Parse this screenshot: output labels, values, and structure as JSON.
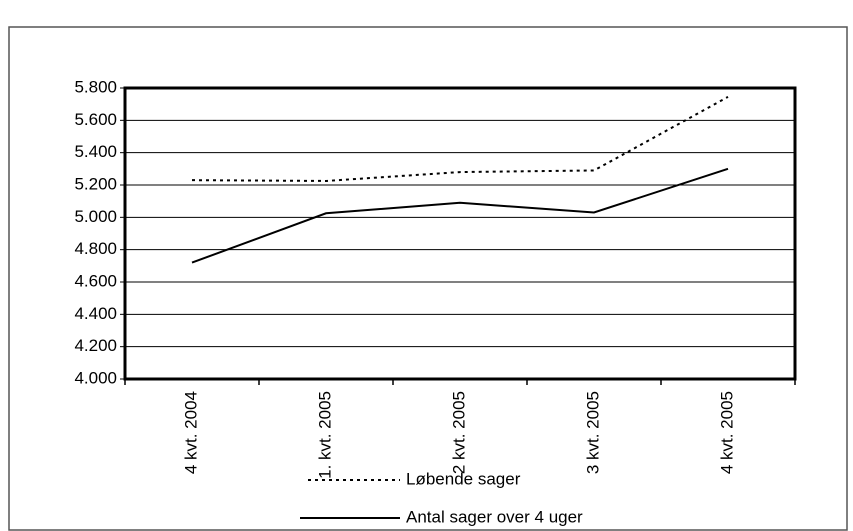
{
  "chart_data": {
    "type": "line",
    "categories": [
      "4 kvt. 2004",
      "1. kvt. 2005",
      "2 kvt. 2005",
      "3 kvt. 2005",
      "4 kvt. 2005"
    ],
    "series": [
      {
        "name": "Løbende sager",
        "color": "#000000",
        "dash": true,
        "values": [
          5230,
          5225,
          5280,
          5290,
          5745
        ]
      },
      {
        "name": "Antal sager over 4 uger",
        "color": "#000000",
        "dash": false,
        "values": [
          4720,
          5025,
          5090,
          5030,
          5300
        ]
      }
    ],
    "ylim": [
      4000,
      5800
    ],
    "yticks": [
      {
        "value": 4000,
        "label": "4.000"
      },
      {
        "value": 4200,
        "label": "4.200"
      },
      {
        "value": 4400,
        "label": "4.400"
      },
      {
        "value": 4600,
        "label": "4.600"
      },
      {
        "value": 4800,
        "label": "4.800"
      },
      {
        "value": 5000,
        "label": "5.000"
      },
      {
        "value": 5200,
        "label": "5.200"
      },
      {
        "value": 5400,
        "label": "5.400"
      },
      {
        "value": 5600,
        "label": "5.600"
      },
      {
        "value": 5800,
        "label": "5.800"
      }
    ],
    "grid": true
  }
}
